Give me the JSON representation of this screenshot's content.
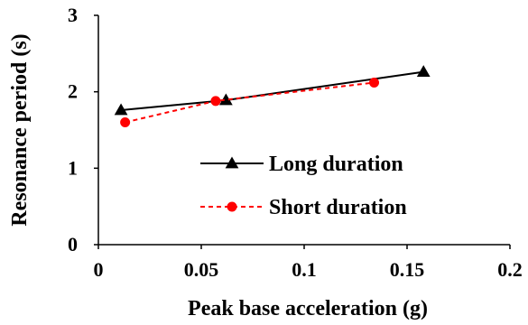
{
  "chart_data": {
    "type": "line",
    "title": "",
    "xlabel": "Peak base acceleration (g)",
    "ylabel": "Resonance period (s)",
    "xlim": [
      0,
      0.2
    ],
    "ylim": [
      0,
      3
    ],
    "xticks": [
      0,
      0.05,
      0.1,
      0.15,
      0.2
    ],
    "xtick_labels": [
      "0",
      "0.05",
      "0.1",
      "0.15",
      "0.2"
    ],
    "yticks": [
      0,
      1,
      2,
      3
    ],
    "ytick_labels": [
      "0",
      "1",
      "2",
      "3"
    ],
    "grid": false,
    "legend_position": "center-right",
    "series": [
      {
        "name": "Long duration",
        "color": "#000000",
        "line_style": "solid",
        "marker": "triangle",
        "x": [
          0.011,
          0.062,
          0.158
        ],
        "y": [
          1.76,
          1.89,
          2.26
        ]
      },
      {
        "name": "Short duration",
        "color": "#ff0000",
        "line_style": "dashed",
        "marker": "circle",
        "x": [
          0.013,
          0.057,
          0.134
        ],
        "y": [
          1.6,
          1.88,
          2.12
        ]
      }
    ]
  }
}
